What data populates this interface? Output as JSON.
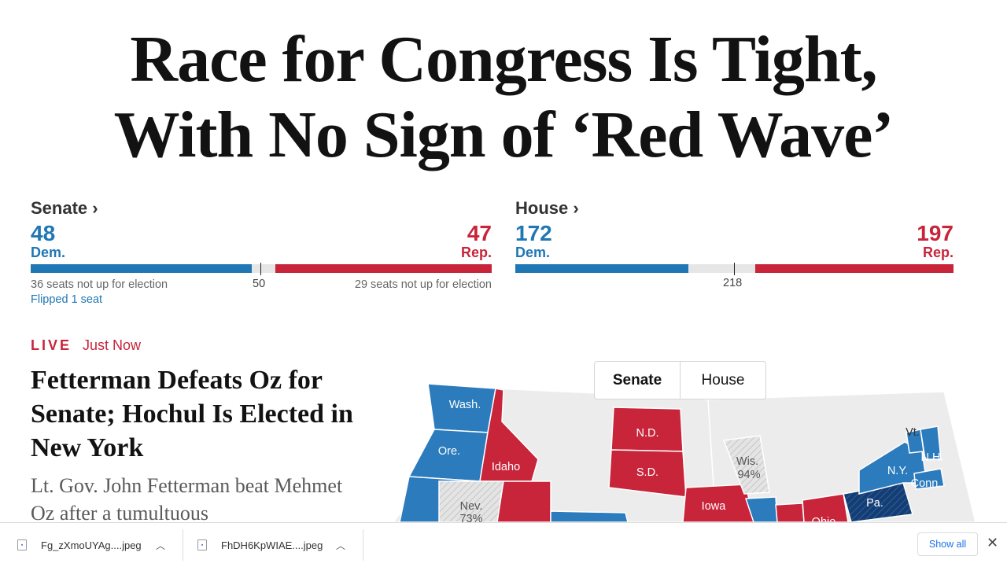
{
  "headline": {
    "line1": "Race for Congress Is Tight,",
    "line2": "With No Sign of ‘Red Wave’"
  },
  "senate": {
    "title": "Senate ›",
    "dem_seats": "48",
    "dem_label": "Dem.",
    "rep_seats": "47",
    "rep_label": "Rep.",
    "majority_mark": "50",
    "dem_note": "36 seats not up for election",
    "rep_note": "29 seats not up for election",
    "flipped": "Flipped 1 seat",
    "total_seats": 100
  },
  "house": {
    "title": "House ›",
    "dem_seats": "172",
    "dem_label": "Dem.",
    "rep_seats": "197",
    "rep_label": "Rep.",
    "majority_mark": "218",
    "total_seats": 435
  },
  "live": {
    "tag": "LIVE",
    "time": "Just Now"
  },
  "story": {
    "headline": "Fetterman Defeats Oz for Senate; Hochul Is Elected in New York",
    "summary": "Lt. Gov. John Fetterman beat Mehmet Oz after a tumultuous"
  },
  "map": {
    "toggle": [
      "Senate",
      "House"
    ],
    "selected": "Senate",
    "state_labels": {
      "wash": "Wash.",
      "ore": "Ore.",
      "idaho": "Idaho",
      "nev": "Nev.",
      "nev_pct": "73%",
      "nd": "N.D.",
      "sd": "S.D.",
      "wis": "Wis.",
      "wis_pct": "94%",
      "iowa": "Iowa",
      "ohio": "Ohio",
      "pa": "Pa.",
      "ny": "N.Y.",
      "vt": "Vt.",
      "nh": "N.H.",
      "conn": "Conn."
    },
    "colors": {
      "dem": "#2b7bbd",
      "rep": "#c8243a",
      "none": "#ececec",
      "flip": "#143d73"
    }
  },
  "downloads": {
    "items": [
      {
        "name": "Fg_zXmoUYAg....jpeg"
      },
      {
        "name": "FhDH6KpWIAE....jpeg"
      }
    ],
    "show_all": "Show all",
    "close": "✕"
  }
}
